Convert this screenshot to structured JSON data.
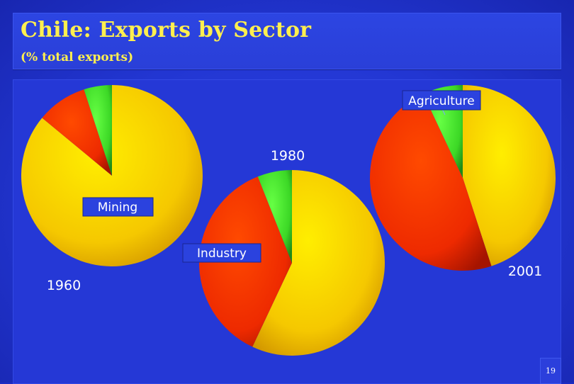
{
  "header": {
    "title": "Chile: Exports by Sector",
    "subtitle": "(% total exports)"
  },
  "page_number": "19",
  "colors": {
    "mining": "#f2c400",
    "industry": "#ff3a00",
    "agriculture": "#44e22e",
    "label_box": "#2b42de",
    "label_text": "#ffffff"
  },
  "chart_data": [
    {
      "type": "pie",
      "year_label": "1960",
      "slices": [
        {
          "sector": "Mining",
          "value": 86
        },
        {
          "sector": "Industry",
          "value": 9
        },
        {
          "sector": "Agriculture",
          "value": 5
        }
      ]
    },
    {
      "type": "pie",
      "year_label": "1980",
      "slices": [
        {
          "sector": "Mining",
          "value": 57
        },
        {
          "sector": "Industry",
          "value": 37
        },
        {
          "sector": "Agriculture",
          "value": 6
        }
      ]
    },
    {
      "type": "pie",
      "year_label": "2001",
      "slices": [
        {
          "sector": "Mining",
          "value": 45
        },
        {
          "sector": "Industry",
          "value": 48
        },
        {
          "sector": "Agriculture",
          "value": 7
        }
      ]
    }
  ],
  "legend_labels": {
    "mining": "Mining",
    "industry": "Industry",
    "agriculture": "Agriculture"
  }
}
